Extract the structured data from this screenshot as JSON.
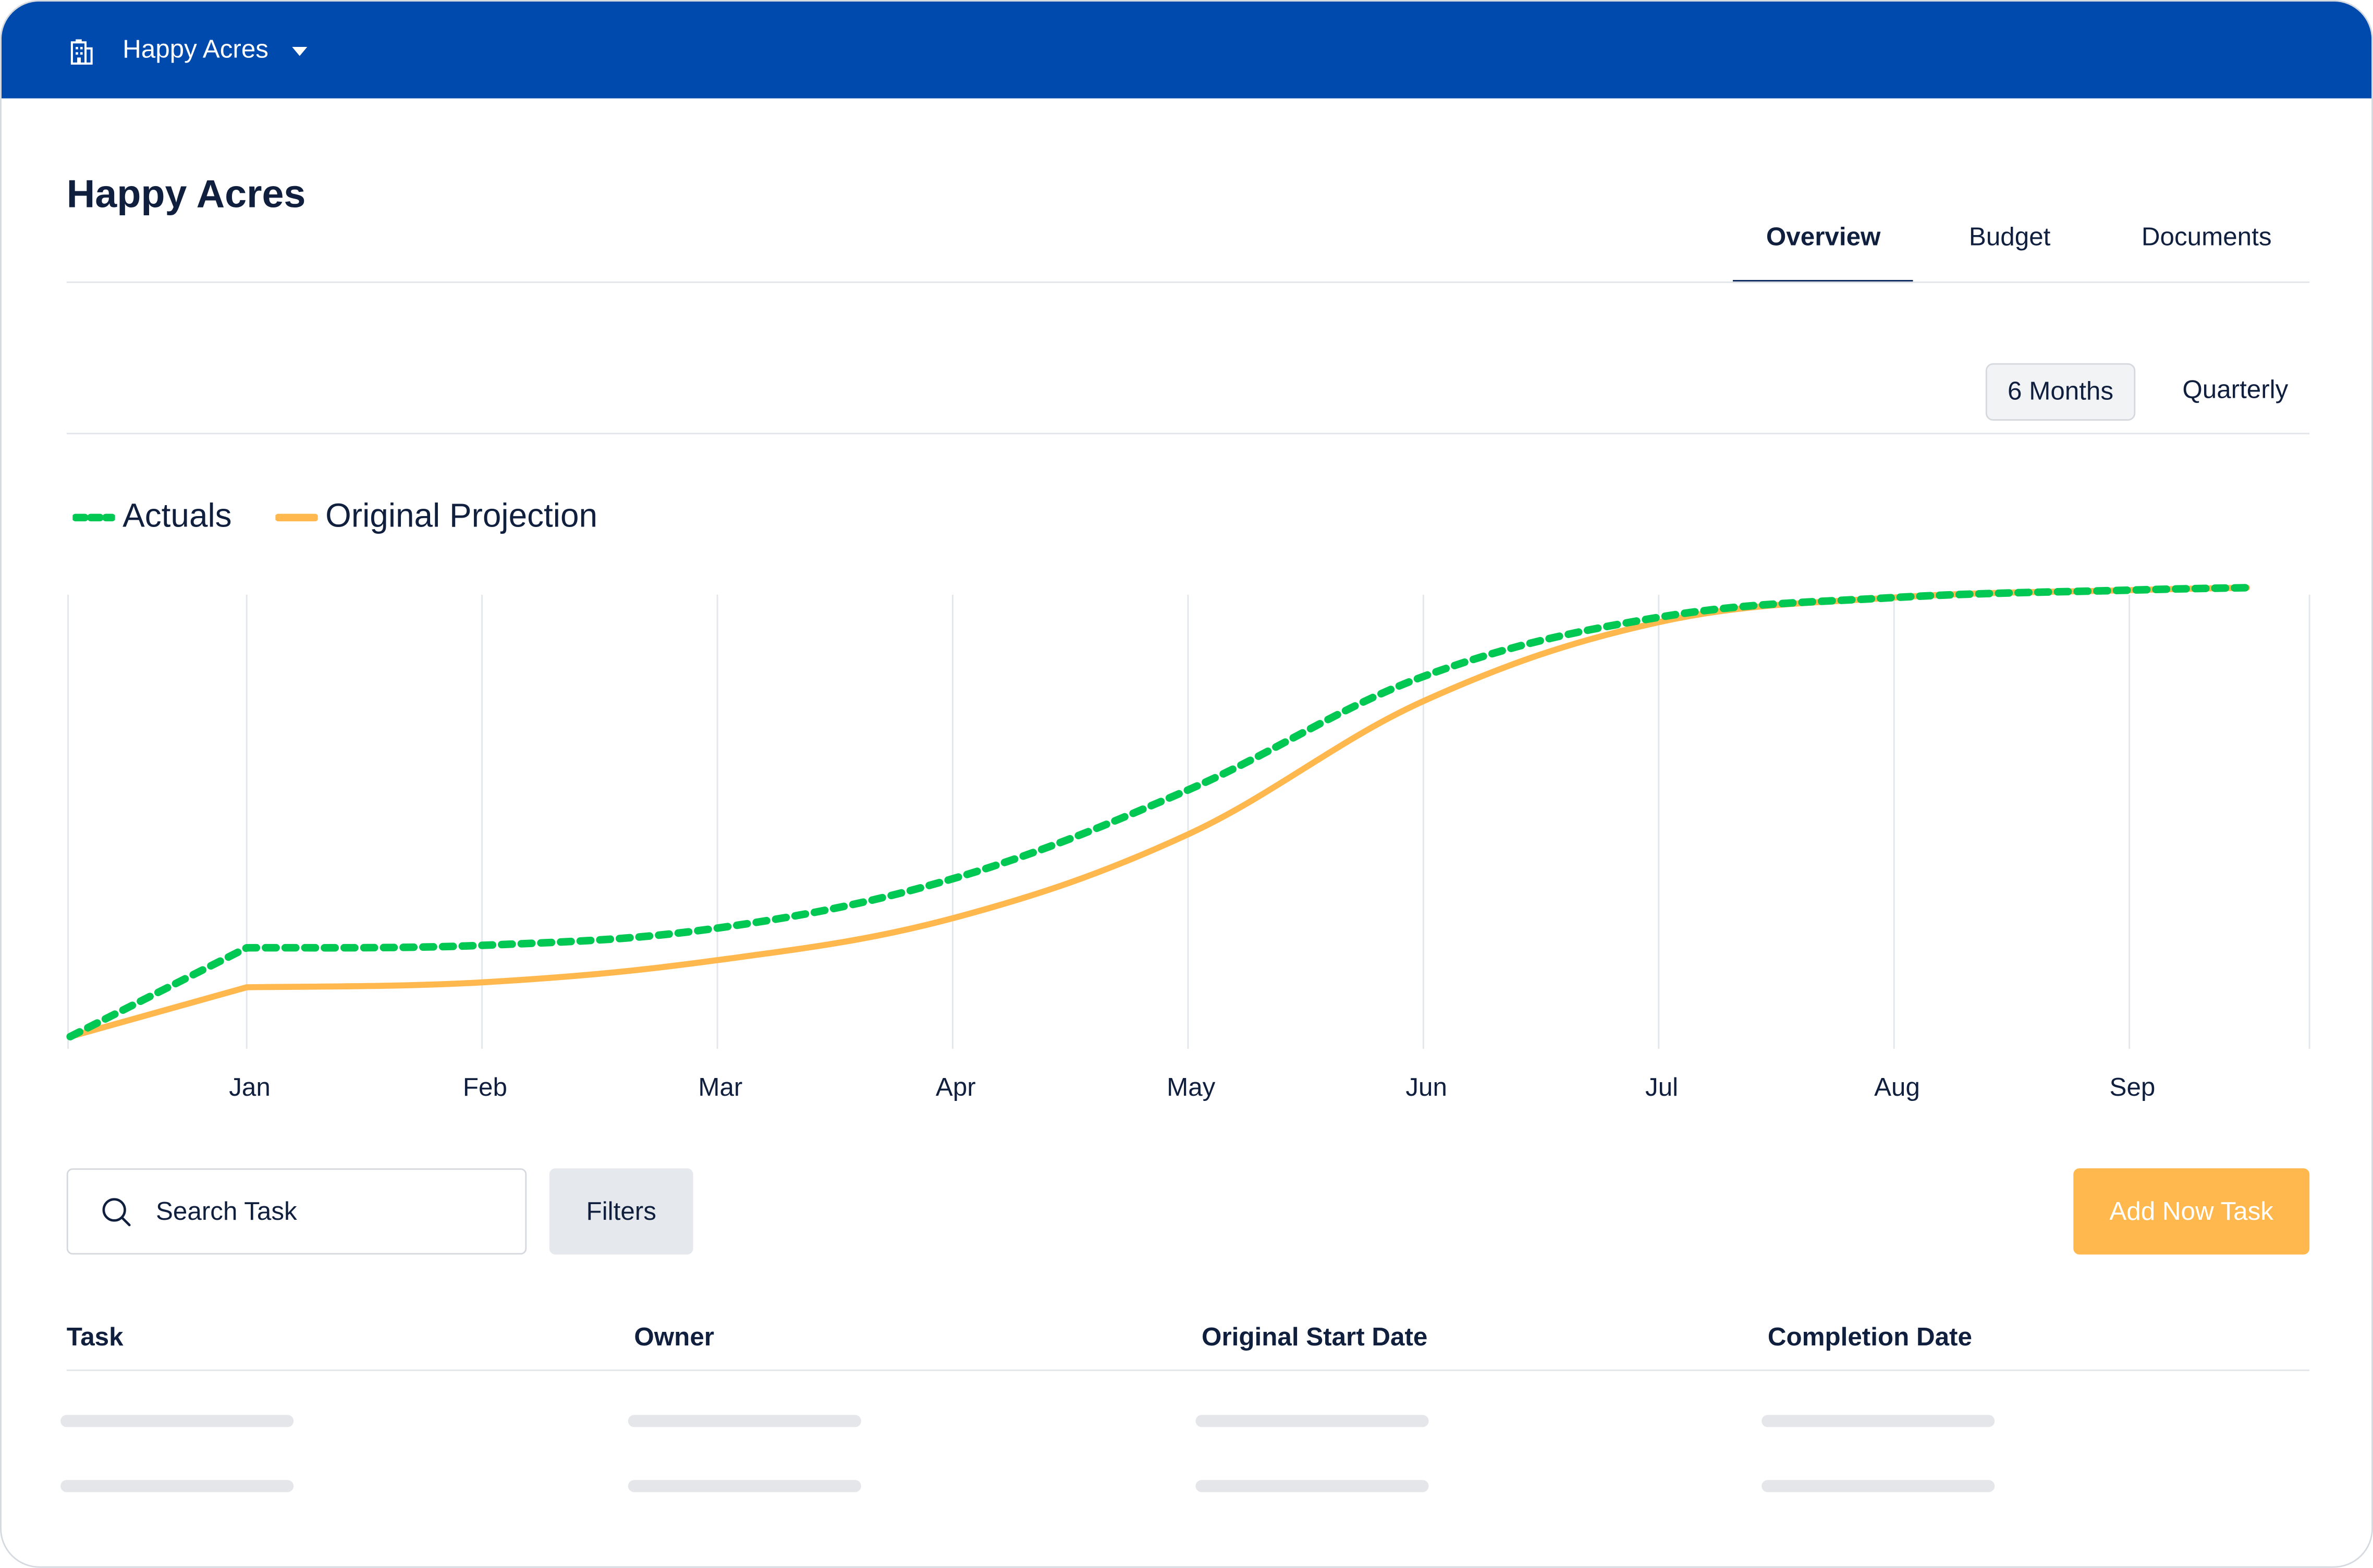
{
  "topbar": {
    "project_name": "Happy Acres",
    "building_icon": "building-icon",
    "caret_icon": "caret-down-icon",
    "background": "#004aad"
  },
  "page": {
    "title": "Happy Acres"
  },
  "tabs": [
    {
      "label": "Overview",
      "active": true
    },
    {
      "label": "Budget",
      "active": false
    },
    {
      "label": "Documents",
      "active": false
    }
  ],
  "range_toggle": [
    {
      "label": "6 Months",
      "active": true
    },
    {
      "label": "Quarterly",
      "active": false
    }
  ],
  "chart_data": {
    "type": "line",
    "title": "",
    "xlabel": "",
    "ylabel": "",
    "categories": [
      "",
      "Jan",
      "Feb",
      "Mar",
      "Apr",
      "May",
      "Jun",
      "Jul",
      "Aug",
      "Sep",
      ""
    ],
    "x_positions": [
      -0.75,
      0,
      1,
      2,
      3,
      4,
      5,
      6,
      7,
      8,
      8.5
    ],
    "ylim": [
      0,
      100
    ],
    "grid": "vertical",
    "legend": "top-left",
    "series": [
      {
        "name": "Actuals",
        "color": "#00c853",
        "dashed": true,
        "values": [
          0,
          18,
          18.5,
          22,
          32,
          50,
          73,
          85,
          89,
          90.5,
          91
        ]
      },
      {
        "name": "Original Projection",
        "color": "#ffb84d",
        "dashed": false,
        "values": [
          0,
          10,
          11,
          15.5,
          24,
          41,
          68,
          84,
          89,
          90.5,
          91
        ]
      }
    ]
  },
  "search": {
    "placeholder": "Search Task",
    "icon": "search-icon"
  },
  "filters": {
    "label": "Filters"
  },
  "add_task": {
    "label": "Add Now Task",
    "color": "#ffb84d"
  },
  "table": {
    "columns": [
      "Task",
      "Owner",
      "Original Start Date",
      "Completion Date"
    ],
    "loading_rows": 2
  }
}
